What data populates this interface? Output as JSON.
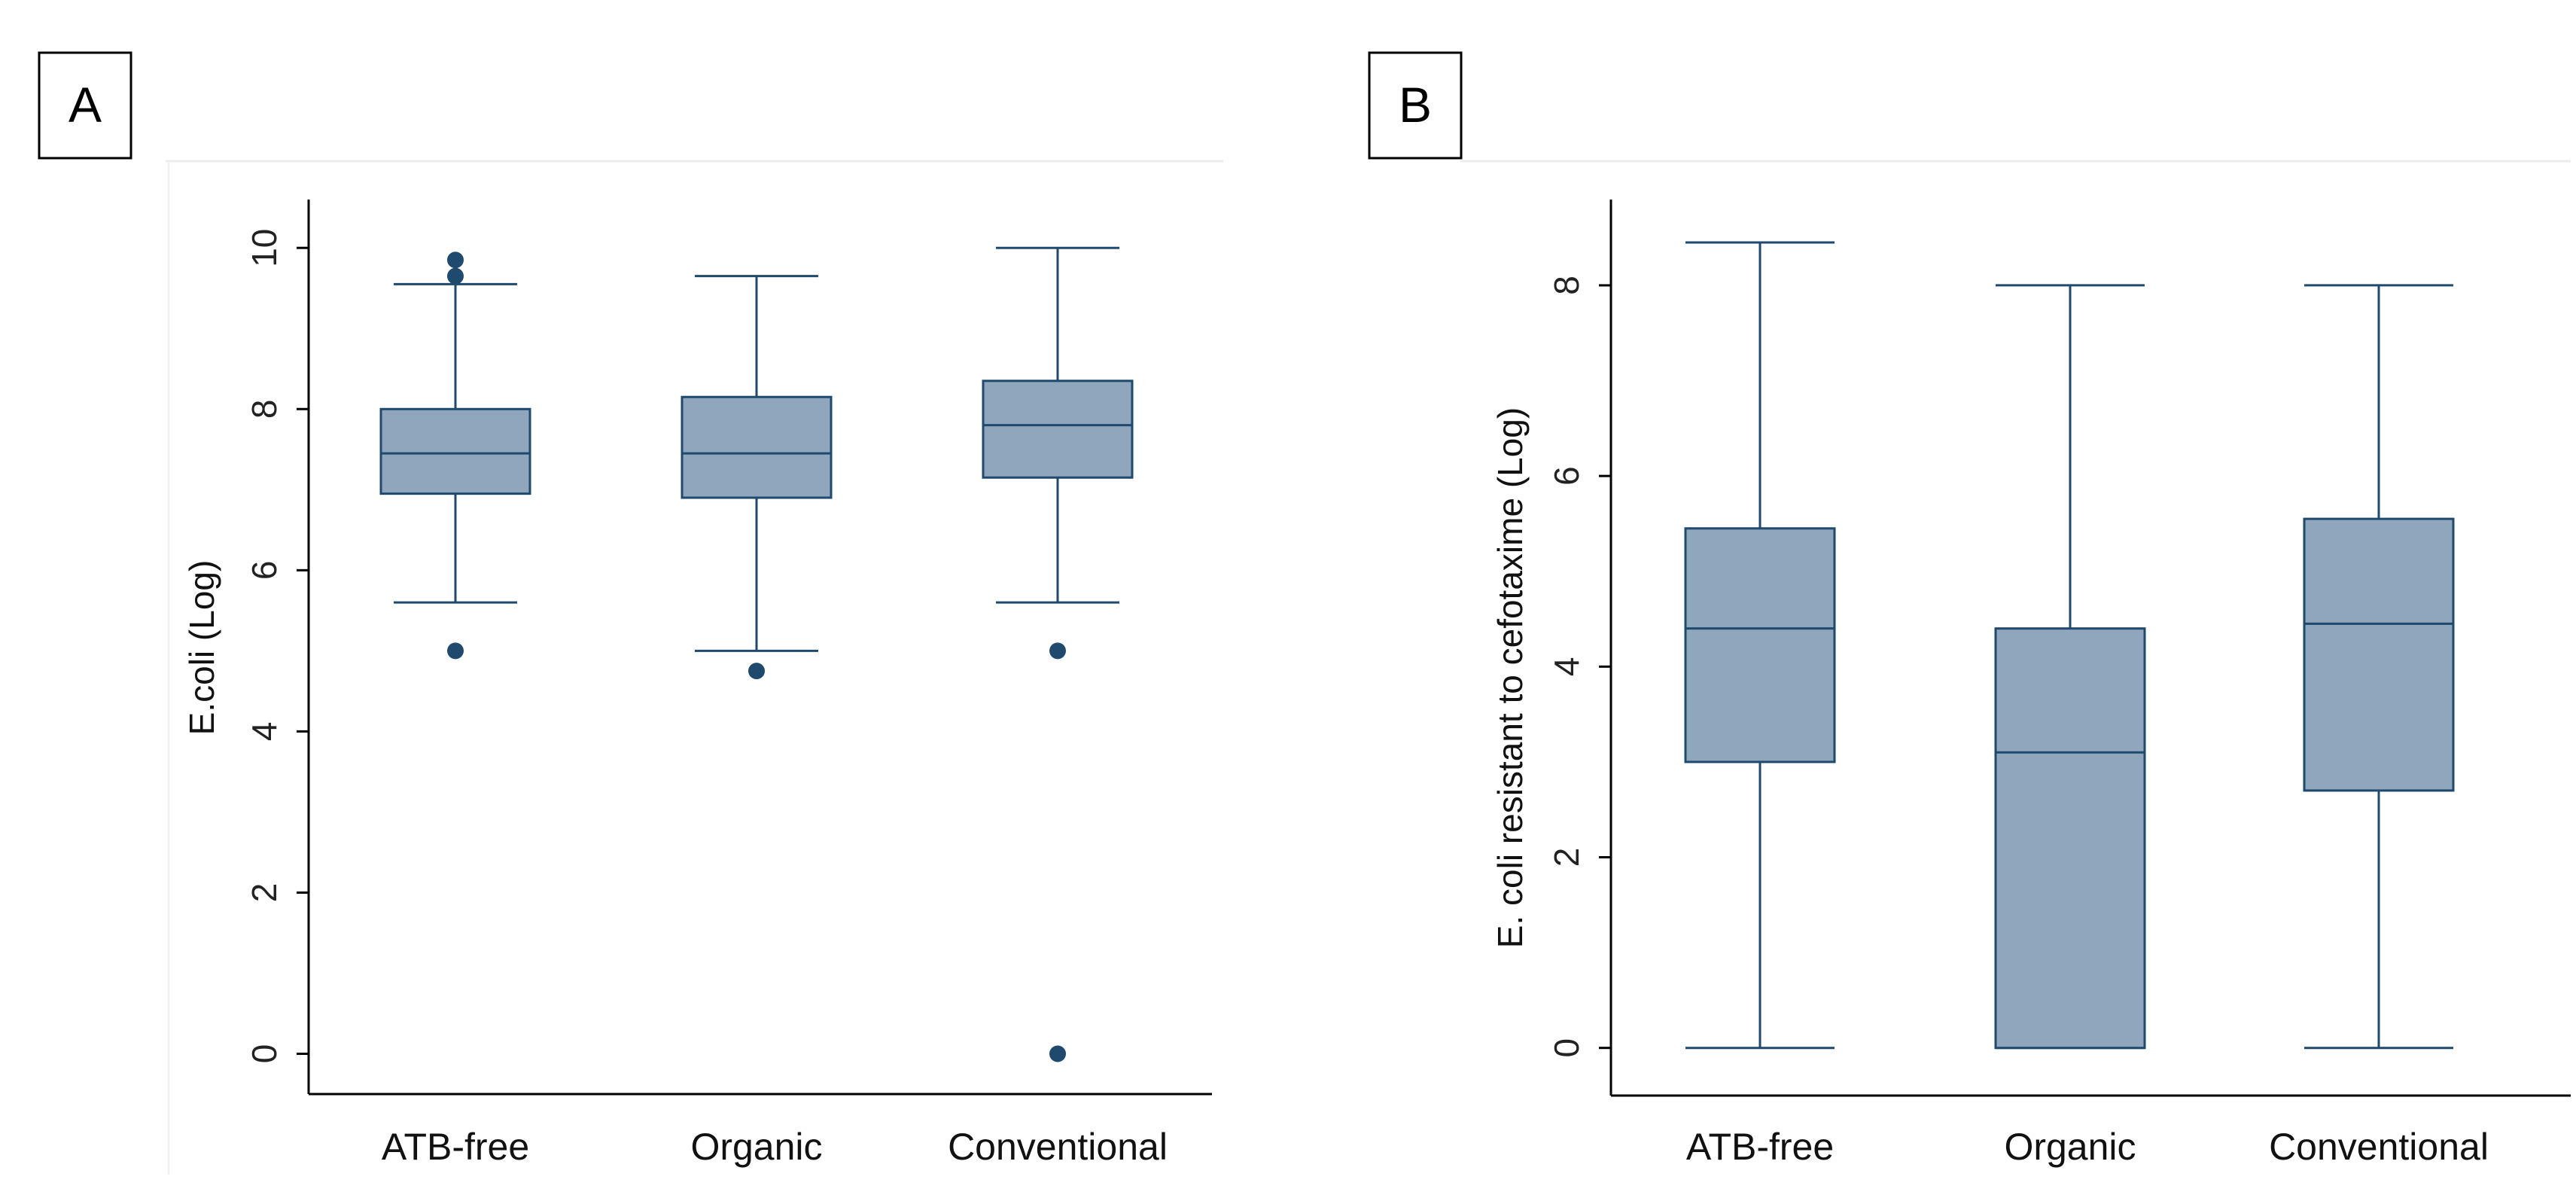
{
  "colors": {
    "box_fill": "#8fa6bc",
    "box_stroke": "#1f4a6e",
    "outlier": "#1f4a6e",
    "axis": "#000000",
    "frame_line": "#ececec"
  },
  "chart_data": [
    {
      "panel_label": "A",
      "type": "box",
      "ylabel": "E.coli (Log)",
      "xlabel": "",
      "categories": [
        "ATB-free",
        "Organic",
        "Conventional"
      ],
      "ylim": [
        -0.5,
        10.6
      ],
      "yticks": [
        0,
        2,
        4,
        6,
        8,
        10
      ],
      "ytick_labels": [
        "0",
        "2",
        "4",
        "6",
        "8",
        "10"
      ],
      "boxes": [
        {
          "category": "ATB-free",
          "whisker_low": 5.6,
          "q1": 6.95,
          "median": 7.45,
          "q3": 8.0,
          "whisker_high": 9.55,
          "outliers": [
            9.85,
            9.65,
            5.0
          ]
        },
        {
          "category": "Organic",
          "whisker_low": 5.0,
          "q1": 6.9,
          "median": 7.45,
          "q3": 8.15,
          "whisker_high": 9.65,
          "outliers": [
            4.75
          ]
        },
        {
          "category": "Conventional",
          "whisker_low": 5.6,
          "q1": 7.15,
          "median": 7.8,
          "q3": 8.35,
          "whisker_high": 10.0,
          "outliers": [
            5.0,
            0.0
          ]
        }
      ]
    },
    {
      "panel_label": "B",
      "type": "box",
      "ylabel": "E. coli resistant to cefotaxime (Log)",
      "xlabel": "",
      "categories": [
        "ATB-free",
        "Organic",
        "Conventional"
      ],
      "ylim": [
        -0.5,
        8.9
      ],
      "yticks": [
        0,
        2,
        4,
        6,
        8
      ],
      "ytick_labels": [
        "0",
        "2",
        "4",
        "6",
        "8"
      ],
      "boxes": [
        {
          "category": "ATB-free",
          "whisker_low": 0.0,
          "q1": 3.0,
          "median": 4.4,
          "q3": 5.45,
          "whisker_high": 8.45,
          "outliers": []
        },
        {
          "category": "Organic",
          "whisker_low": 0.0,
          "q1": 0.0,
          "median": 3.1,
          "q3": 4.4,
          "whisker_high": 8.0,
          "outliers": []
        },
        {
          "category": "Conventional",
          "whisker_low": 0.0,
          "q1": 2.7,
          "median": 4.45,
          "q3": 5.55,
          "whisker_high": 8.0,
          "outliers": []
        }
      ]
    }
  ]
}
